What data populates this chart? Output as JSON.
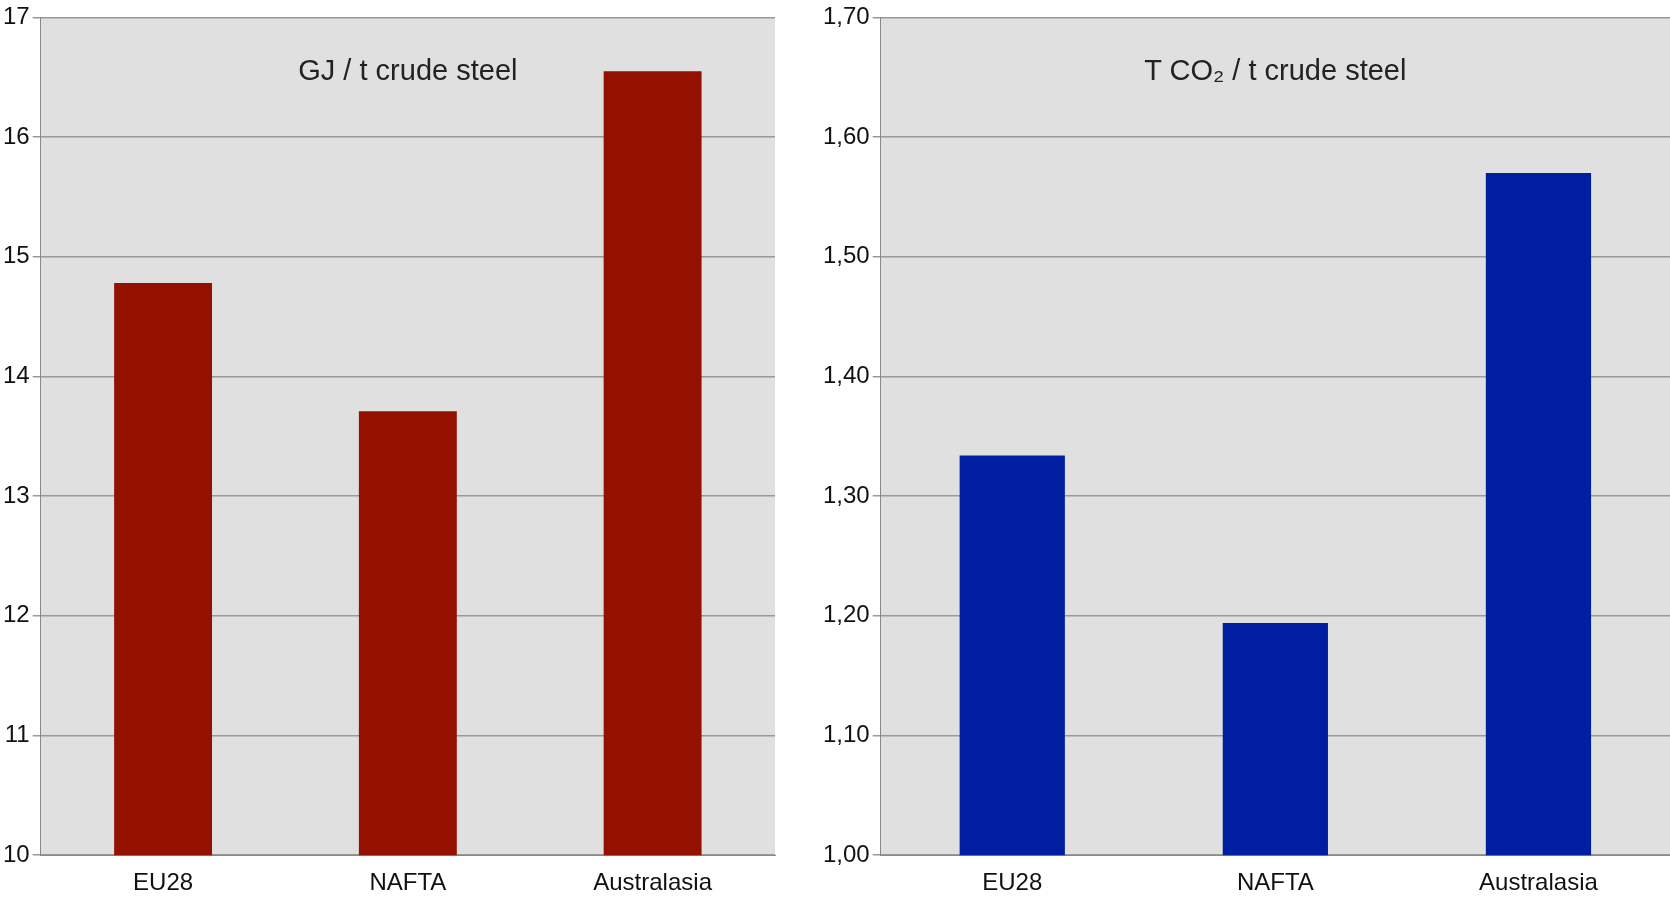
{
  "chart_data": [
    {
      "type": "bar",
      "title": "GJ / t crude steel",
      "categories": [
        "EU28",
        "NAFTA",
        "Australasia"
      ],
      "values": [
        14.78,
        13.71,
        16.55
      ],
      "color": "#941100",
      "ylim": [
        10,
        17
      ],
      "yticks": [
        10,
        11,
        12,
        13,
        14,
        15,
        16,
        17
      ],
      "grid": "y",
      "legend": false
    },
    {
      "type": "bar",
      "title": "T CO₂ / t crude steel",
      "categories": [
        "EU28",
        "NAFTA",
        "Australasia"
      ],
      "values": [
        1.334,
        1.194,
        1.57
      ],
      "color": "#001ea0",
      "ylim": [
        1.0,
        1.7
      ],
      "yticks": [
        {
          "value": 1.0,
          "label": "1,00"
        },
        {
          "value": 1.1,
          "label": "1,10"
        },
        {
          "value": 1.2,
          "label": "1,20"
        },
        {
          "value": 1.3,
          "label": "1,30"
        },
        {
          "value": 1.4,
          "label": "1,40"
        },
        {
          "value": 1.5,
          "label": "1,50"
        },
        {
          "value": 1.6,
          "label": "1,60"
        },
        {
          "value": 1.7,
          "label": "1,70"
        }
      ],
      "grid": "y",
      "legend": false
    }
  ]
}
